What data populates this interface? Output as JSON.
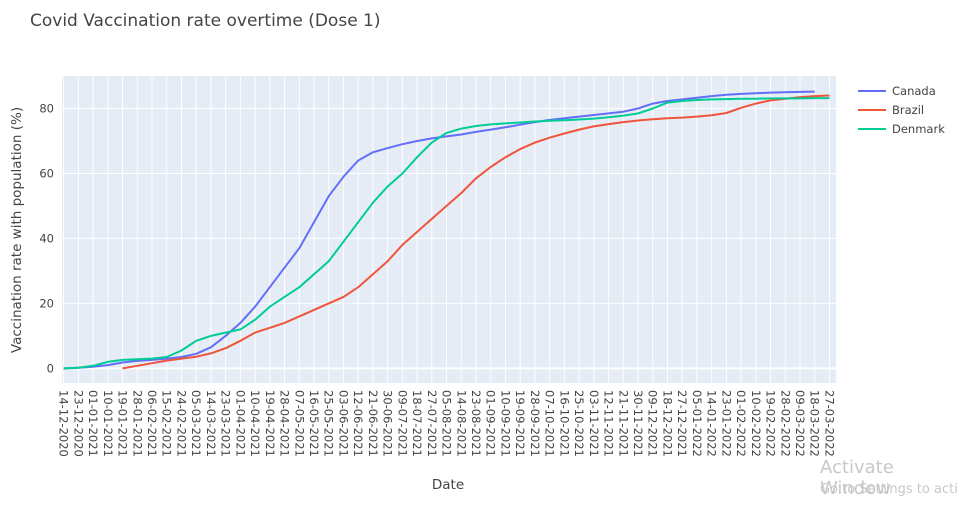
{
  "chart_data": {
    "type": "line",
    "title": "Covid Vaccination rate overtime (Dose 1)",
    "xlabel": "Date",
    "ylabel": "Vaccination rate with population (%)",
    "ylim": [
      -4.5,
      90
    ],
    "yticks": [
      0,
      20,
      40,
      60,
      80
    ],
    "grid": true,
    "legend_position": "top-right",
    "x_tick_labels": [
      "14-12-2020",
      "23-12-2020",
      "01-01-2021",
      "10-01-2021",
      "19-01-2021",
      "28-01-2021",
      "06-02-2021",
      "15-02-2021",
      "24-02-2021",
      "05-03-2021",
      "14-03-2021",
      "23-03-2021",
      "01-04-2021",
      "10-04-2021",
      "19-04-2021",
      "28-04-2021",
      "07-05-2021",
      "16-05-2021",
      "25-05-2021",
      "03-06-2021",
      "12-06-2021",
      "21-06-2021",
      "30-06-2021",
      "09-07-2021",
      "18-07-2021",
      "27-07-2021",
      "05-08-2021",
      "14-08-2021",
      "23-08-2021",
      "01-09-2021",
      "10-09-2021",
      "19-09-2021",
      "28-09-2021",
      "07-10-2021",
      "16-10-2021",
      "25-10-2021",
      "03-11-2021",
      "12-11-2021",
      "21-11-2021",
      "30-11-2021",
      "09-12-2021",
      "18-12-2021",
      "27-12-2021",
      "05-01-2022",
      "14-01-2022",
      "23-01-2022",
      "01-02-2022",
      "10-02-2022",
      "19-02-2022",
      "28-02-2022",
      "09-03-2022",
      "18-03-2022",
      "27-03-2022"
    ],
    "series": [
      {
        "name": "Canada",
        "color": "#636efa",
        "points": [
          [
            "14-12-2020",
            0
          ],
          [
            "23-12-2020",
            0.2
          ],
          [
            "01-01-2021",
            0.5
          ],
          [
            "10-01-2021",
            1.0
          ],
          [
            "19-01-2021",
            1.8
          ],
          [
            "28-01-2021",
            2.3
          ],
          [
            "06-02-2021",
            2.6
          ],
          [
            "15-02-2021",
            3.0
          ],
          [
            "24-02-2021",
            3.5
          ],
          [
            "05-03-2021",
            4.5
          ],
          [
            "14-03-2021",
            6.5
          ],
          [
            "23-03-2021",
            10
          ],
          [
            "01-04-2021",
            14
          ],
          [
            "10-04-2021",
            19
          ],
          [
            "19-04-2021",
            25
          ],
          [
            "28-04-2021",
            31
          ],
          [
            "07-05-2021",
            37
          ],
          [
            "16-05-2021",
            45
          ],
          [
            "25-05-2021",
            53
          ],
          [
            "03-06-2021",
            59
          ],
          [
            "12-06-2021",
            64
          ],
          [
            "21-06-2021",
            66.5
          ],
          [
            "30-06-2021",
            67.8
          ],
          [
            "09-07-2021",
            69
          ],
          [
            "18-07-2021",
            70
          ],
          [
            "27-07-2021",
            70.8
          ],
          [
            "05-08-2021",
            71.4
          ],
          [
            "14-08-2021",
            72
          ],
          [
            "23-08-2021",
            72.8
          ],
          [
            "01-09-2021",
            73.5
          ],
          [
            "10-09-2021",
            74.2
          ],
          [
            "19-09-2021",
            75
          ],
          [
            "28-09-2021",
            75.8
          ],
          [
            "07-10-2021",
            76.5
          ],
          [
            "16-10-2021",
            77
          ],
          [
            "25-10-2021",
            77.5
          ],
          [
            "03-11-2021",
            78
          ],
          [
            "12-11-2021",
            78.5
          ],
          [
            "21-11-2021",
            79
          ],
          [
            "30-11-2021",
            80
          ],
          [
            "09-12-2021",
            81.5
          ],
          [
            "18-12-2021",
            82.3
          ],
          [
            "27-12-2021",
            82.8
          ],
          [
            "05-01-2022",
            83.3
          ],
          [
            "14-01-2022",
            83.8
          ],
          [
            "23-01-2022",
            84.2
          ],
          [
            "01-02-2022",
            84.5
          ],
          [
            "10-02-2022",
            84.7
          ],
          [
            "19-02-2022",
            84.9
          ],
          [
            "28-02-2022",
            85
          ],
          [
            "09-03-2022",
            85.1
          ],
          [
            "18-03-2022",
            85.2
          ]
        ]
      },
      {
        "name": "Brazil",
        "color": "#ef553b",
        "points": [
          [
            "19-01-2021",
            0
          ],
          [
            "28-01-2021",
            0.8
          ],
          [
            "06-02-2021",
            1.6
          ],
          [
            "15-02-2021",
            2.4
          ],
          [
            "24-02-2021",
            3.0
          ],
          [
            "05-03-2021",
            3.6
          ],
          [
            "14-03-2021",
            4.6
          ],
          [
            "23-03-2021",
            6.2
          ],
          [
            "01-04-2021",
            8.5
          ],
          [
            "10-04-2021",
            11
          ],
          [
            "19-04-2021",
            12.5
          ],
          [
            "28-04-2021",
            14
          ],
          [
            "07-05-2021",
            16
          ],
          [
            "16-05-2021",
            18
          ],
          [
            "25-05-2021",
            20
          ],
          [
            "03-06-2021",
            22
          ],
          [
            "12-06-2021",
            25
          ],
          [
            "21-06-2021",
            29
          ],
          [
            "30-06-2021",
            33
          ],
          [
            "09-07-2021",
            38
          ],
          [
            "18-07-2021",
            42
          ],
          [
            "27-07-2021",
            46
          ],
          [
            "05-08-2021",
            50
          ],
          [
            "14-08-2021",
            54
          ],
          [
            "23-08-2021",
            58.5
          ],
          [
            "01-09-2021",
            62
          ],
          [
            "10-09-2021",
            65
          ],
          [
            "19-09-2021",
            67.5
          ],
          [
            "28-09-2021",
            69.5
          ],
          [
            "07-10-2021",
            71
          ],
          [
            "16-10-2021",
            72.3
          ],
          [
            "25-10-2021",
            73.5
          ],
          [
            "03-11-2021",
            74.5
          ],
          [
            "12-11-2021",
            75.2
          ],
          [
            "21-11-2021",
            75.8
          ],
          [
            "30-11-2021",
            76.3
          ],
          [
            "09-12-2021",
            76.7
          ],
          [
            "18-12-2021",
            77
          ],
          [
            "27-12-2021",
            77.2
          ],
          [
            "05-01-2022",
            77.5
          ],
          [
            "14-01-2022",
            77.9
          ],
          [
            "23-01-2022",
            78.6
          ],
          [
            "01-02-2022",
            80.2
          ],
          [
            "10-02-2022",
            81.5
          ],
          [
            "19-02-2022",
            82.5
          ],
          [
            "28-02-2022",
            83
          ],
          [
            "09-03-2022",
            83.5
          ],
          [
            "18-03-2022",
            83.8
          ],
          [
            "27-03-2022",
            84
          ]
        ]
      },
      {
        "name": "Denmark",
        "color": "#00cc96",
        "points": [
          [
            "14-12-2020",
            0
          ],
          [
            "23-12-2020",
            0.2
          ],
          [
            "01-01-2021",
            0.8
          ],
          [
            "10-01-2021",
            2.0
          ],
          [
            "19-01-2021",
            2.6
          ],
          [
            "28-01-2021",
            2.8
          ],
          [
            "06-02-2021",
            3.0
          ],
          [
            "15-02-2021",
            3.5
          ],
          [
            "24-02-2021",
            5.5
          ],
          [
            "05-03-2021",
            8.5
          ],
          [
            "14-03-2021",
            10
          ],
          [
            "23-03-2021",
            11
          ],
          [
            "01-04-2021",
            12
          ],
          [
            "10-04-2021",
            15
          ],
          [
            "19-04-2021",
            19
          ],
          [
            "28-04-2021",
            22
          ],
          [
            "07-05-2021",
            25
          ],
          [
            "16-05-2021",
            29
          ],
          [
            "25-05-2021",
            33
          ],
          [
            "03-06-2021",
            39
          ],
          [
            "12-06-2021",
            45
          ],
          [
            "21-06-2021",
            51
          ],
          [
            "30-06-2021",
            56
          ],
          [
            "09-07-2021",
            60
          ],
          [
            "18-07-2021",
            65
          ],
          [
            "27-07-2021",
            69.5
          ],
          [
            "05-08-2021",
            72.5
          ],
          [
            "14-08-2021",
            73.8
          ],
          [
            "23-08-2021",
            74.6
          ],
          [
            "01-09-2021",
            75.1
          ],
          [
            "10-09-2021",
            75.4
          ],
          [
            "19-09-2021",
            75.7
          ],
          [
            "28-09-2021",
            76
          ],
          [
            "07-10-2021",
            76.2
          ],
          [
            "16-10-2021",
            76.4
          ],
          [
            "25-10-2021",
            76.6
          ],
          [
            "03-11-2021",
            76.9
          ],
          [
            "12-11-2021",
            77.3
          ],
          [
            "21-11-2021",
            77.8
          ],
          [
            "30-11-2021",
            78.5
          ],
          [
            "09-12-2021",
            80
          ],
          [
            "18-12-2021",
            81.8
          ],
          [
            "27-12-2021",
            82.3
          ],
          [
            "05-01-2022",
            82.6
          ],
          [
            "14-01-2022",
            82.8
          ],
          [
            "23-01-2022",
            82.9
          ],
          [
            "01-02-2022",
            83
          ],
          [
            "10-02-2022",
            83
          ],
          [
            "19-02-2022",
            83.1
          ],
          [
            "28-02-2022",
            83.1
          ],
          [
            "09-03-2022",
            83.1
          ],
          [
            "18-03-2022",
            83.2
          ],
          [
            "27-03-2022",
            83.2
          ]
        ]
      }
    ]
  },
  "watermark": {
    "line1": "Activate Window",
    "line2": "Go to Settings to acti"
  }
}
